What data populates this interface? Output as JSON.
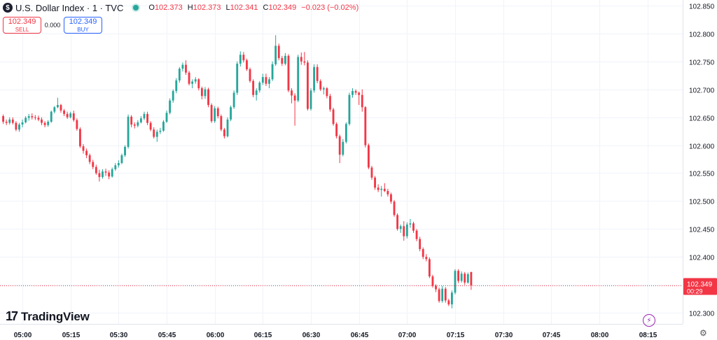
{
  "header": {
    "symbol_icon": "$",
    "symbol_title": "U.S. Dollar Index · 1 · TVC",
    "ohlc": [
      {
        "key": "O",
        "value": "102.373"
      },
      {
        "key": "H",
        "value": "102.373"
      },
      {
        "key": "L",
        "value": "102.341"
      },
      {
        "key": "C",
        "value": "102.349"
      },
      {
        "key": "",
        "value": "−0.023 (−0.02%)"
      }
    ]
  },
  "trade": {
    "sell_price": "102.349",
    "sell_label": "SELL",
    "spread": "0.000",
    "buy_price": "102.349",
    "buy_label": "BUY"
  },
  "logo": {
    "text": "TradingView",
    "mark": "17"
  },
  "colors": {
    "up": "#26a69a",
    "down": "#f23645",
    "grid": "#f0f3fa",
    "axis_text": "#131722"
  },
  "chart_data": {
    "type": "candlestick",
    "y_range": [
      102.28,
      102.86
    ],
    "y_ticks": [
      "102.300",
      "102.350",
      "102.400",
      "102.450",
      "102.500",
      "102.550",
      "102.600",
      "102.650",
      "102.700",
      "102.750",
      "102.800",
      "102.850"
    ],
    "x_ticks": [
      {
        "label": "05:00",
        "t": 0
      },
      {
        "label": "05:15",
        "t": 15
      },
      {
        "label": "05:30",
        "t": 30
      },
      {
        "label": "05:45",
        "t": 45
      },
      {
        "label": "06:00",
        "t": 60
      },
      {
        "label": "06:15",
        "t": 75
      },
      {
        "label": "06:30",
        "t": 90
      },
      {
        "label": "06:45",
        "t": 105
      },
      {
        "label": "07:00",
        "t": 120
      },
      {
        "label": "07:15",
        "t": 135
      },
      {
        "label": "07:30",
        "t": 150
      },
      {
        "label": "07:45",
        "t": 165
      },
      {
        "label": "08:00",
        "t": 180
      },
      {
        "label": "08:15",
        "t": 195
      }
    ],
    "x_range": [
      -7,
      206
    ],
    "last_price": "102.349",
    "last_price_value": 102.349,
    "countdown": "00:29",
    "candles": [
      [
        -6,
        102.652,
        102.655,
        102.638,
        102.642
      ],
      [
        -5,
        102.642,
        102.646,
        102.636,
        102.64
      ],
      [
        -4,
        102.64,
        102.65,
        102.637,
        102.646
      ],
      [
        -3,
        102.646,
        102.65,
        102.637,
        102.64
      ],
      [
        -2,
        102.64,
        102.643,
        102.625,
        102.628
      ],
      [
        -1,
        102.628,
        102.64,
        102.624,
        102.637
      ],
      [
        0,
        102.637,
        102.646,
        102.632,
        102.641
      ],
      [
        1,
        102.641,
        102.652,
        102.639,
        102.649
      ],
      [
        2,
        102.649,
        102.656,
        102.644,
        102.652
      ],
      [
        3,
        102.652,
        102.657,
        102.646,
        102.65
      ],
      [
        4,
        102.65,
        102.654,
        102.645,
        102.649
      ],
      [
        5,
        102.649,
        102.653,
        102.643,
        102.646
      ],
      [
        6,
        102.646,
        102.65,
        102.636,
        102.64
      ],
      [
        7,
        102.64,
        102.643,
        102.632,
        102.636
      ],
      [
        8,
        102.636,
        102.645,
        102.633,
        102.642
      ],
      [
        9,
        102.642,
        102.662,
        102.64,
        102.66
      ],
      [
        10,
        102.66,
        102.67,
        102.657,
        102.668
      ],
      [
        11,
        102.668,
        102.685,
        102.666,
        102.672
      ],
      [
        12,
        102.672,
        102.674,
        102.658,
        102.662
      ],
      [
        13,
        102.662,
        102.665,
        102.652,
        102.656
      ],
      [
        14,
        102.656,
        102.66,
        102.647,
        102.65
      ],
      [
        15,
        102.65,
        102.66,
        102.648,
        102.657
      ],
      [
        16,
        102.657,
        102.662,
        102.642,
        102.645
      ],
      [
        17,
        102.645,
        102.648,
        102.626,
        102.629
      ],
      [
        18,
        102.629,
        102.632,
        102.595,
        102.598
      ],
      [
        19,
        102.598,
        102.602,
        102.585,
        102.59
      ],
      [
        20,
        102.59,
        102.594,
        102.577,
        102.582
      ],
      [
        21,
        102.582,
        102.585,
        102.566,
        102.57
      ],
      [
        22,
        102.57,
        102.574,
        102.557,
        102.561
      ],
      [
        23,
        102.561,
        102.565,
        102.547,
        102.55
      ],
      [
        24,
        102.55,
        102.556,
        102.535,
        102.543
      ],
      [
        25,
        102.543,
        102.557,
        102.54,
        102.553
      ],
      [
        26,
        102.553,
        102.558,
        102.545,
        102.551
      ],
      [
        27,
        102.551,
        102.555,
        102.539,
        102.544
      ],
      [
        28,
        102.544,
        102.56,
        102.542,
        102.557
      ],
      [
        29,
        102.557,
        102.568,
        102.554,
        102.564
      ],
      [
        30,
        102.564,
        102.573,
        102.56,
        102.568
      ],
      [
        31,
        102.568,
        102.585,
        102.566,
        102.582
      ],
      [
        32,
        102.582,
        102.6,
        102.579,
        102.597
      ],
      [
        33,
        102.597,
        102.655,
        102.594,
        102.651
      ],
      [
        34,
        102.651,
        102.654,
        102.632,
        102.637
      ],
      [
        35,
        102.637,
        102.641,
        102.63,
        102.635
      ],
      [
        36,
        102.635,
        102.645,
        102.632,
        102.641
      ],
      [
        37,
        102.641,
        102.652,
        102.639,
        102.648
      ],
      [
        38,
        102.648,
        102.66,
        102.645,
        102.656
      ],
      [
        39,
        102.656,
        102.66,
        102.636,
        102.64
      ],
      [
        40,
        102.64,
        102.643,
        102.625,
        102.628
      ],
      [
        41,
        102.628,
        102.632,
        102.612,
        102.615
      ],
      [
        42,
        102.615,
        102.628,
        102.606,
        102.624
      ],
      [
        43,
        102.624,
        102.631,
        102.62,
        102.626
      ],
      [
        44,
        102.626,
        102.645,
        102.624,
        102.642
      ],
      [
        45,
        102.642,
        102.662,
        102.64,
        102.658
      ],
      [
        46,
        102.658,
        102.684,
        102.655,
        102.68
      ],
      [
        47,
        102.68,
        102.7,
        102.676,
        102.697
      ],
      [
        48,
        102.697,
        102.72,
        102.693,
        102.716
      ],
      [
        49,
        102.716,
        102.74,
        102.712,
        102.737
      ],
      [
        50,
        102.737,
        102.748,
        102.732,
        102.744
      ],
      [
        51,
        102.744,
        102.752,
        102.726,
        102.73
      ],
      [
        52,
        102.73,
        102.733,
        102.707,
        102.71
      ],
      [
        53,
        102.71,
        102.718,
        102.702,
        102.714
      ],
      [
        54,
        102.714,
        102.722,
        102.71,
        102.718
      ],
      [
        55,
        102.718,
        102.72,
        102.698,
        102.702
      ],
      [
        56,
        102.702,
        102.705,
        102.682,
        102.688
      ],
      [
        57,
        102.688,
        102.704,
        102.683,
        102.7
      ],
      [
        58,
        102.7,
        102.703,
        102.668,
        102.672
      ],
      [
        59,
        102.672,
        102.675,
        102.64,
        102.643
      ],
      [
        60,
        102.643,
        102.67,
        102.64,
        102.666
      ],
      [
        61,
        102.666,
        102.669,
        102.648,
        102.652
      ],
      [
        62,
        102.652,
        102.655,
        102.625,
        102.628
      ],
      [
        63,
        102.628,
        102.631,
        102.612,
        102.616
      ],
      [
        64,
        102.616,
        102.65,
        102.614,
        102.646
      ],
      [
        65,
        102.646,
        102.671,
        102.643,
        102.668
      ],
      [
        66,
        102.668,
        102.698,
        102.665,
        102.694
      ],
      [
        67,
        102.694,
        102.75,
        102.69,
        102.746
      ],
      [
        68,
        102.746,
        102.768,
        102.741,
        102.762
      ],
      [
        69,
        102.762,
        102.767,
        102.748,
        102.752
      ],
      [
        70,
        102.752,
        102.755,
        102.733,
        102.736
      ],
      [
        71,
        102.736,
        102.739,
        102.712,
        102.715
      ],
      [
        72,
        102.715,
        102.718,
        102.686,
        102.69
      ],
      [
        73,
        102.69,
        102.702,
        102.68,
        102.698
      ],
      [
        74,
        102.698,
        102.715,
        102.694,
        102.712
      ],
      [
        75,
        102.712,
        102.728,
        102.708,
        102.722
      ],
      [
        76,
        102.722,
        102.728,
        102.706,
        102.71
      ],
      [
        77,
        102.71,
        102.722,
        102.702,
        102.718
      ],
      [
        78,
        102.718,
        102.75,
        102.715,
        102.745
      ],
      [
        79,
        102.745,
        102.797,
        102.742,
        102.778
      ],
      [
        80,
        102.778,
        102.782,
        102.752,
        102.756
      ],
      [
        81,
        102.756,
        102.76,
        102.742,
        102.746
      ],
      [
        82,
        102.746,
        102.765,
        102.743,
        102.76
      ],
      [
        83,
        102.76,
        102.763,
        102.695,
        102.698
      ],
      [
        84,
        102.698,
        102.702,
        102.675,
        102.689
      ],
      [
        85,
        102.689,
        102.693,
        102.635,
        102.68
      ],
      [
        86,
        102.68,
        102.762,
        102.677,
        102.758
      ],
      [
        87,
        102.758,
        102.766,
        102.744,
        102.75
      ],
      [
        88,
        102.75,
        102.767,
        102.743,
        102.748
      ],
      [
        89,
        102.748,
        102.752,
        102.662,
        102.665
      ],
      [
        90,
        102.665,
        102.702,
        102.662,
        102.698
      ],
      [
        91,
        102.698,
        102.745,
        102.694,
        102.74
      ],
      [
        92,
        102.74,
        102.745,
        102.711,
        102.715
      ],
      [
        93,
        102.715,
        102.718,
        102.697,
        102.7
      ],
      [
        94,
        102.7,
        102.705,
        102.691,
        102.702
      ],
      [
        95,
        102.702,
        102.704,
        102.684,
        102.688
      ],
      [
        96,
        102.688,
        102.692,
        102.66,
        102.664
      ],
      [
        97,
        102.664,
        102.667,
        102.635,
        102.638
      ],
      [
        98,
        102.638,
        102.641,
        102.612,
        102.616
      ],
      [
        99,
        102.616,
        102.619,
        102.568,
        102.583
      ],
      [
        100,
        102.583,
        102.611,
        102.58,
        102.606
      ],
      [
        101,
        102.606,
        102.641,
        102.603,
        102.638
      ],
      [
        102,
        102.638,
        102.694,
        102.635,
        102.69
      ],
      [
        103,
        102.69,
        102.702,
        102.685,
        102.697
      ],
      [
        104,
        102.697,
        102.7,
        102.69,
        102.694
      ],
      [
        105,
        102.694,
        102.696,
        102.672,
        102.69
      ],
      [
        106,
        102.69,
        102.7,
        102.66,
        102.668
      ],
      [
        107,
        102.668,
        102.67,
        102.596,
        102.6
      ],
      [
        108,
        102.6,
        102.603,
        102.557,
        102.56
      ],
      [
        109,
        102.56,
        102.563,
        102.538,
        102.542
      ],
      [
        110,
        102.542,
        102.545,
        102.52,
        102.524
      ],
      [
        111,
        102.524,
        102.53,
        102.516,
        102.52
      ],
      [
        112,
        102.52,
        102.527,
        102.508,
        102.522
      ],
      [
        113,
        102.522,
        102.532,
        102.516,
        102.518
      ],
      [
        114,
        102.518,
        102.522,
        102.508,
        102.512
      ],
      [
        115,
        102.512,
        102.515,
        102.495,
        102.499
      ],
      [
        116,
        102.499,
        102.502,
        102.472,
        102.475
      ],
      [
        117,
        102.475,
        102.478,
        102.447,
        102.45
      ],
      [
        118,
        102.45,
        102.458,
        102.443,
        102.455
      ],
      [
        119,
        102.455,
        102.464,
        102.429,
        102.437
      ],
      [
        120,
        102.437,
        102.462,
        102.433,
        102.458
      ],
      [
        121,
        102.458,
        102.468,
        102.452,
        102.46
      ],
      [
        122,
        102.46,
        102.463,
        102.443,
        102.447
      ],
      [
        123,
        102.447,
        102.45,
        102.428,
        102.432
      ],
      [
        124,
        102.432,
        102.436,
        102.41,
        102.414
      ],
      [
        125,
        102.414,
        102.417,
        102.396,
        102.4
      ],
      [
        126,
        102.4,
        102.405,
        102.392,
        102.396
      ],
      [
        127,
        102.396,
        102.399,
        102.362,
        102.365
      ],
      [
        128,
        102.365,
        102.368,
        102.345,
        102.348
      ],
      [
        129,
        102.348,
        102.351,
        102.337,
        102.342
      ],
      [
        130,
        102.342,
        102.345,
        102.318,
        102.321
      ],
      [
        131,
        102.321,
        102.348,
        102.318,
        102.343
      ],
      [
        132,
        102.343,
        102.346,
        102.318,
        102.322
      ],
      [
        133,
        102.322,
        102.325,
        102.312,
        102.315
      ],
      [
        134,
        102.315,
        102.34,
        102.308,
        102.336
      ],
      [
        135,
        102.336,
        102.378,
        102.333,
        102.375
      ],
      [
        136,
        102.375,
        102.378,
        102.353,
        102.357
      ],
      [
        137,
        102.357,
        102.374,
        102.354,
        102.37
      ],
      [
        138,
        102.37,
        102.373,
        102.35,
        102.354
      ],
      [
        139,
        102.354,
        102.372,
        102.352,
        102.369
      ],
      [
        140,
        102.373,
        102.373,
        102.341,
        102.349
      ]
    ]
  }
}
